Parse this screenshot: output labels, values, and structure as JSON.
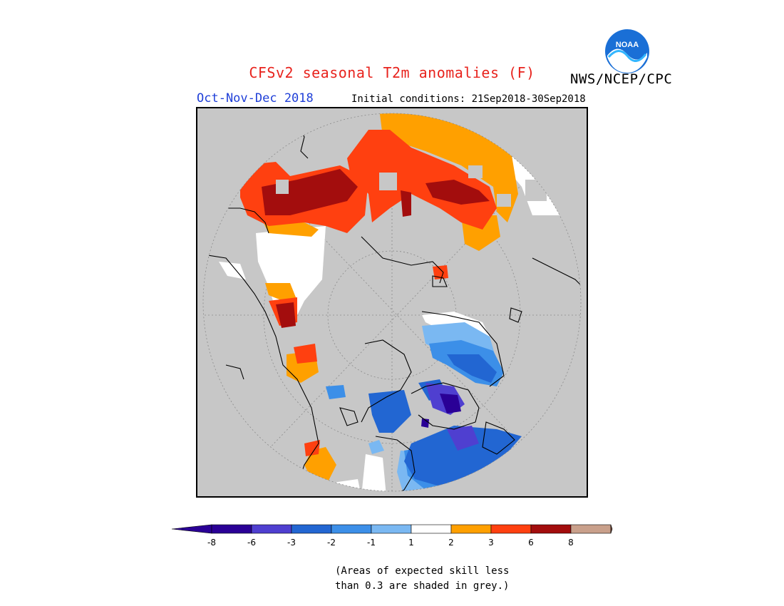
{
  "header": {
    "title": "CFSv2 seasonal T2m anomalies (F)",
    "agency": "NWS/NCEP/CPC",
    "logo_text": "NOAA",
    "season": "Oct-Nov-Dec 2018",
    "initial_conditions": "Initial conditions: 21Sep2018-30Sep2018"
  },
  "legend": {
    "colors": [
      "#2a0096",
      "#4f3fd0",
      "#2266d2",
      "#3c8fe8",
      "#7ab8f2",
      "#ffffff",
      "#ffa000",
      "#ff4010",
      "#a30d0d",
      "#c9a08b"
    ],
    "arrow_low_color": "#2a0096",
    "arrow_high_color": "#7d4c3d",
    "ticks": [
      "-8",
      "-6",
      "-3",
      "-2",
      "-1",
      "1",
      "2",
      "3",
      "6",
      "8"
    ]
  },
  "colors": {
    "no_skill_grey": "#c7c7c7",
    "title_red": "#e8231d",
    "season_blue": "#1f3fd8"
  },
  "footnote": {
    "line1": "(Areas of expected skill less",
    "line2": "than 0.3 are shaded in grey.)"
  }
}
